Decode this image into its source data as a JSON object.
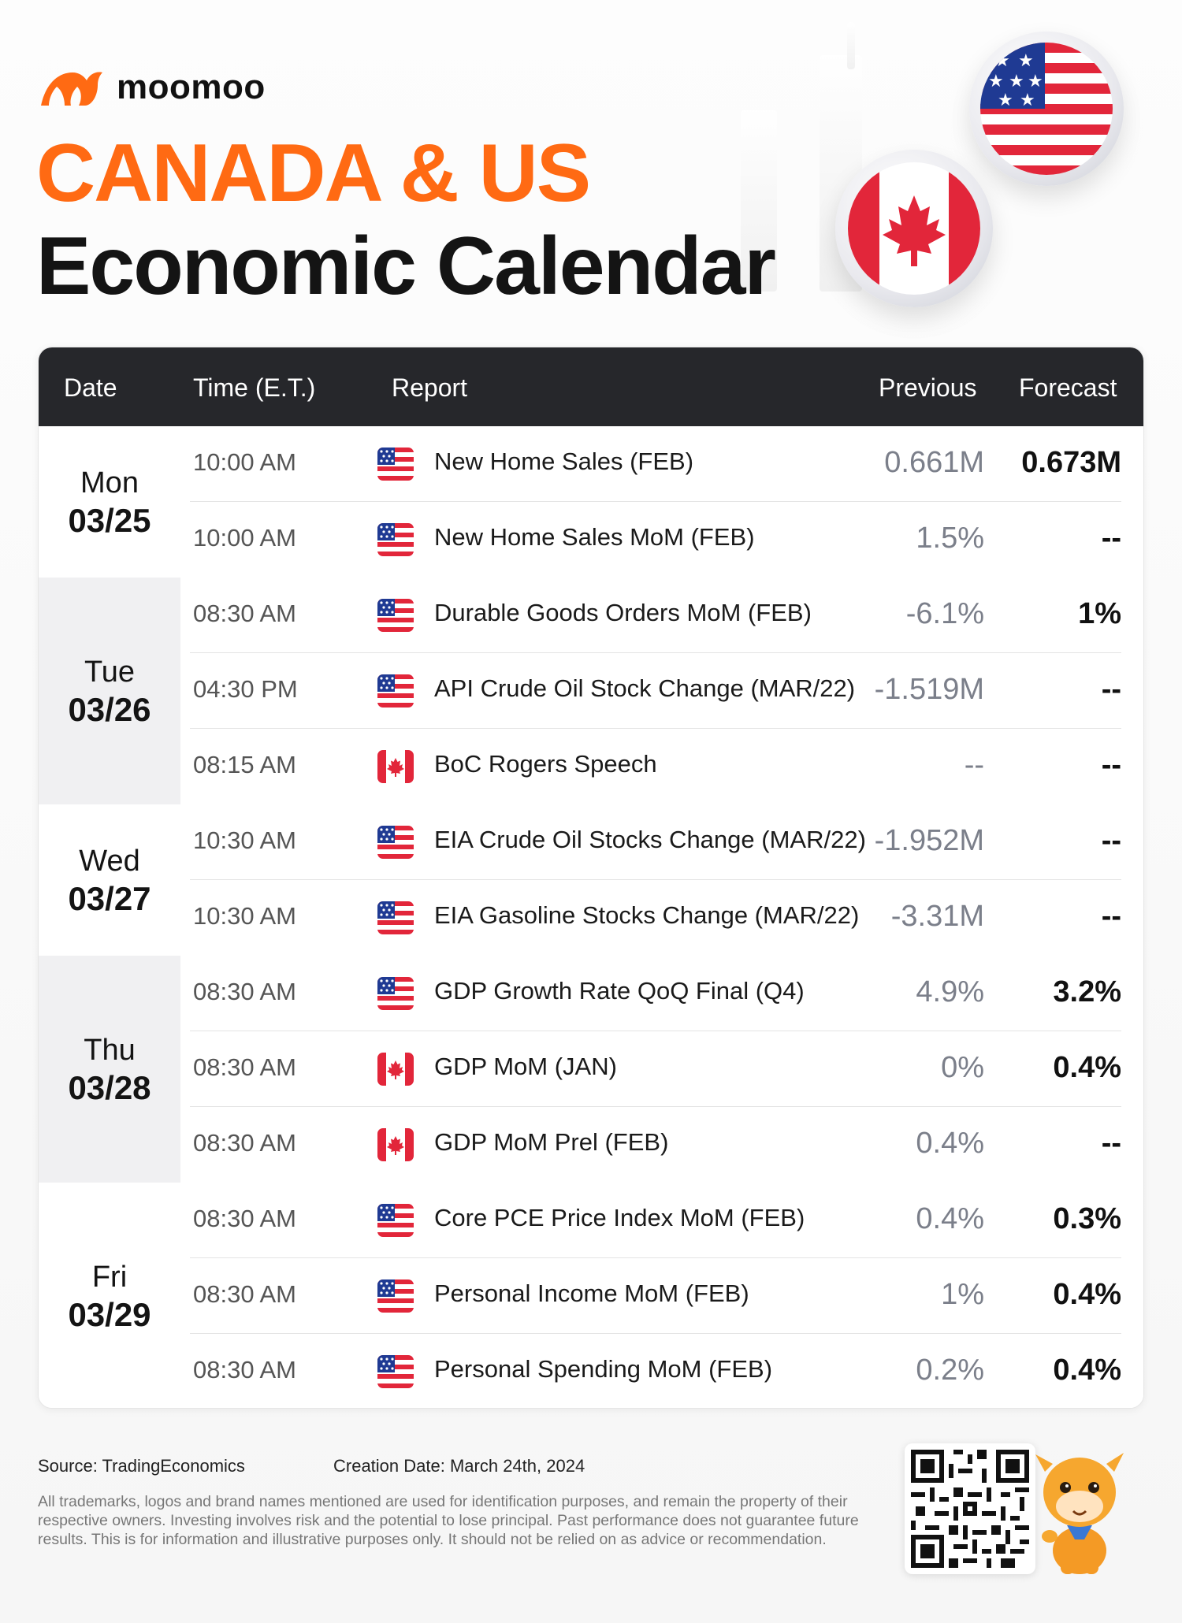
{
  "brand": {
    "name": "moomoo"
  },
  "title": {
    "line1": "CANADA & US",
    "line2": "Economic Calendar"
  },
  "colors": {
    "accent": "#ff6a13",
    "header_bg": "#26272b",
    "shade_bg": "#f0f0f2",
    "prev_text": "#7b7f8a"
  },
  "table": {
    "headers": {
      "date": "Date",
      "time": "Time (E.T.)",
      "report": "Report",
      "previous": "Previous",
      "forecast": "Forecast"
    },
    "days": [
      {
        "dow": "Mon",
        "md": "03/25",
        "rows": [
          {
            "time": "10:00 AM",
            "flag": "us-flag-icon",
            "report": "New Home Sales  (FEB)",
            "previous": "0.661M",
            "forecast": "0.673M"
          },
          {
            "time": "10:00 AM",
            "flag": "us-flag-icon",
            "report": "New Home Sales MoM  (FEB)",
            "previous": "1.5%",
            "forecast": "--"
          }
        ]
      },
      {
        "dow": "Tue",
        "md": "03/26",
        "rows": [
          {
            "time": "08:30 AM",
            "flag": "us-flag-icon",
            "report": "Durable Goods Orders MoM (FEB)",
            "previous": "-6.1%",
            "forecast": "1%"
          },
          {
            "time": "04:30 PM",
            "flag": "us-flag-icon",
            "report": "API Crude Oil Stock Change  (MAR/22)",
            "previous": "-1.519M",
            "forecast": "--"
          },
          {
            "time": "08:15 AM",
            "flag": "canada-flag-icon",
            "report": "BoC Rogers Speech",
            "previous": "--",
            "forecast": "--"
          }
        ]
      },
      {
        "dow": "Wed",
        "md": "03/27",
        "rows": [
          {
            "time": "10:30 AM",
            "flag": "us-flag-icon",
            "report": "EIA Crude Oil Stocks Change (MAR/22)",
            "previous": "-1.952M",
            "forecast": "--"
          },
          {
            "time": "10:30  AM",
            "flag": "us-flag-icon",
            "report": "EIA Gasoline Stocks Change (MAR/22)",
            "previous": "-3.31M",
            "forecast": "--"
          }
        ]
      },
      {
        "dow": "Thu",
        "md": "03/28",
        "rows": [
          {
            "time": "08:30 AM",
            "flag": "us-flag-icon",
            "report": "GDP Growth Rate QoQ Final  (Q4)",
            "previous": "4.9%",
            "forecast": "3.2%"
          },
          {
            "time": "08:30 AM",
            "flag": "canada-flag-icon",
            "report": "GDP MoM  (JAN)",
            "previous": "0%",
            "forecast": "0.4%"
          },
          {
            "time": "08:30 AM",
            "flag": "canada-flag-icon",
            "report": "GDP MoM Prel (FEB)",
            "previous": "0.4%",
            "forecast": "--"
          }
        ]
      },
      {
        "dow": "Fri",
        "md": "03/29",
        "rows": [
          {
            "time": "08:30 AM",
            "flag": "us-flag-icon",
            "report": "Core PCE Price Index MoM (FEB)",
            "previous": "0.4%",
            "forecast": "0.3%"
          },
          {
            "time": "08:30 AM",
            "flag": "us-flag-icon",
            "report": "Personal Income MoM (FEB)",
            "previous": "1%",
            "forecast": "0.4%"
          },
          {
            "time": "08:30 AM",
            "flag": "us-flag-icon",
            "report": "Personal Spending MoM (FEB)",
            "previous": "0.2%",
            "forecast": "0.4%"
          }
        ]
      }
    ]
  },
  "footer": {
    "source": "Source: TradingEconomics",
    "created": "Creation Date: March 24th, 2024",
    "disclaimer": "All trademarks, logos and brand names mentioned are used for identification purposes, and remain the property of their respective owners. Investing involves risk and the potential to lose principal. Past performance does not guarantee future results. This is for information and illustrative purposes only. It should not be relied on as advice or recommendation."
  }
}
